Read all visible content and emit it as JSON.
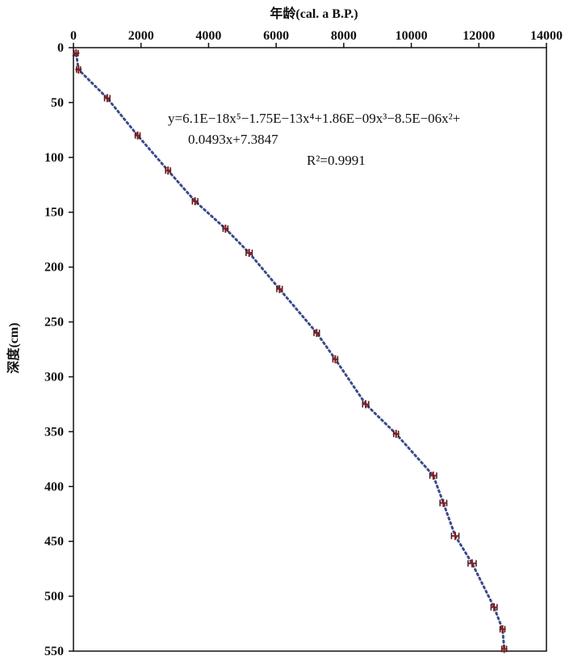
{
  "chart_data": {
    "type": "scatter",
    "xlabel": "年龄(cal. a B.P.)",
    "ylabel": "深度(cm)",
    "xlim": [
      0,
      14000
    ],
    "ylim": [
      0,
      550
    ],
    "x_ticks": [
      "0",
      "2000",
      "4000",
      "6000",
      "8000",
      "10000",
      "12000",
      "14000"
    ],
    "y_ticks": [
      "0",
      "50",
      "100",
      "150",
      "200",
      "250",
      "300",
      "350",
      "400",
      "450",
      "500",
      "550"
    ],
    "x_axis_position": "top",
    "y_axis_inverted": true,
    "grid": false,
    "points": [
      {
        "age": 80,
        "depth": 5,
        "err": 60
      },
      {
        "age": 150,
        "depth": 20,
        "err": 60
      },
      {
        "age": 1000,
        "depth": 46,
        "err": 80
      },
      {
        "age": 1900,
        "depth": 80,
        "err": 70
      },
      {
        "age": 2800,
        "depth": 112,
        "err": 70
      },
      {
        "age": 3600,
        "depth": 140,
        "err": 80
      },
      {
        "age": 4500,
        "depth": 165,
        "err": 70
      },
      {
        "age": 5200,
        "depth": 187,
        "err": 90
      },
      {
        "age": 6100,
        "depth": 220,
        "err": 80
      },
      {
        "age": 7200,
        "depth": 260,
        "err": 80
      },
      {
        "age": 7750,
        "depth": 284,
        "err": 70
      },
      {
        "age": 8650,
        "depth": 325,
        "err": 90
      },
      {
        "age": 9550,
        "depth": 352,
        "err": 70
      },
      {
        "age": 10650,
        "depth": 390,
        "err": 100
      },
      {
        "age": 10950,
        "depth": 415,
        "err": 100
      },
      {
        "age": 11300,
        "depth": 445,
        "err": 110
      },
      {
        "age": 11800,
        "depth": 470,
        "err": 120
      },
      {
        "age": 12450,
        "depth": 510,
        "err": 90
      },
      {
        "age": 12700,
        "depth": 530,
        "err": 70
      },
      {
        "age": 12750,
        "depth": 548,
        "err": 70
      }
    ],
    "trendline": {
      "type": "polynomial",
      "order": 5,
      "equation_line1": "y=6.1E−18x⁵−1.75E−13x⁴+1.86E−09x³−8.5E−06x²+",
      "equation_line2": "0.0493x+7.3847",
      "r_squared": "R²=0.9991"
    }
  }
}
